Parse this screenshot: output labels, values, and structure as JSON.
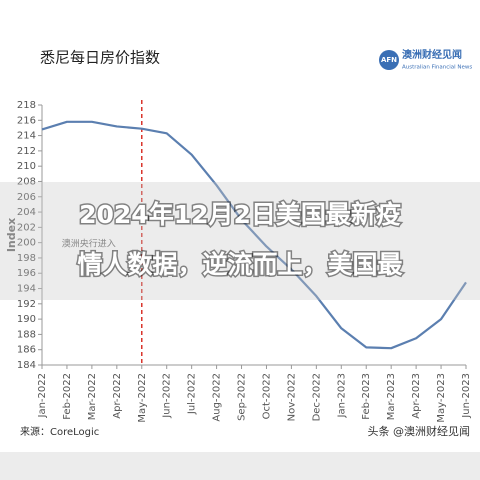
{
  "chart_data": {
    "type": "line",
    "title": "悉尼每日房价指数",
    "y_label": "Index",
    "categories": [
      "Jan-2022",
      "Feb-2022",
      "Mar-2022",
      "Apr-2022",
      "May-2022",
      "Jun-2022",
      "Jul-2022",
      "Aug-2022",
      "Sep-2022",
      "Oct-2022",
      "Nov-2022",
      "Dec-2022",
      "Jan-2023",
      "Feb-2023",
      "Mar-2023",
      "Apr-2023",
      "May-2023",
      "Jun-2023"
    ],
    "series": [
      {
        "color": "#5b7fb0",
        "values": [
          214.8,
          215.8,
          215.8,
          215.2,
          214.9,
          214.3,
          211.5,
          207.5,
          203,
          199.5,
          196.5,
          193,
          188.8,
          186.3,
          186.2,
          187.5,
          190,
          194.8
        ]
      }
    ],
    "ylim": [
      184,
      218
    ],
    "yticks": [
      184,
      186,
      188,
      190,
      192,
      194,
      196,
      198,
      200,
      202,
      204,
      206,
      208,
      210,
      212,
      214,
      216,
      218
    ],
    "event": {
      "at": "May-2022",
      "label": "澳洲央行进入",
      "color": "#d9342b"
    }
  },
  "headline": [
    "2024年12月2日美国最新疫",
    "情人数据，逆流而上，美国最"
  ],
  "logo": {
    "mark": "AFN",
    "name": "澳洲财经见闻",
    "subtitle": "Australian Financial News"
  },
  "source": "来源：CoreLogic",
  "watermark": "头条 @澳洲财经见闻"
}
